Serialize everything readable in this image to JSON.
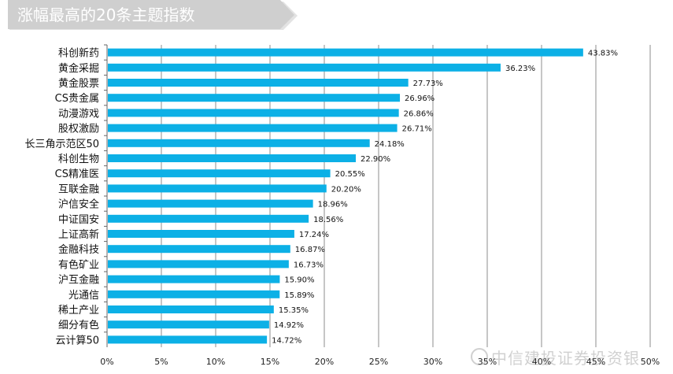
{
  "title": "涨幅最高的20条主题指数",
  "watermark": "中信建投证券投资银",
  "colors": {
    "bar": "#0cb0e6",
    "banner": "#d2d2d2",
    "banner_dark": "#9a9a9a"
  },
  "chart_data": {
    "type": "bar",
    "orientation": "horizontal",
    "categories": [
      "科创新药",
      "黄金采掘",
      "黄金股票",
      "CS贵金属",
      "动漫游戏",
      "股权激励",
      "长三角示范区50",
      "科创生物",
      "CS精准医",
      "互联金融",
      "沪信安全",
      "中证国安",
      "上证高新",
      "金融科技",
      "有色矿业",
      "沪互金融",
      "光通信",
      "稀土产业",
      "细分有色",
      "云计算50"
    ],
    "values": [
      43.83,
      36.23,
      27.73,
      26.96,
      26.86,
      26.71,
      24.18,
      22.9,
      20.55,
      20.2,
      18.96,
      18.56,
      17.24,
      16.87,
      16.73,
      15.9,
      15.89,
      15.35,
      14.92,
      14.72
    ],
    "value_labels": [
      "43.83%",
      "36.23%",
      "27.73%",
      "26.96%",
      "26.86%",
      "26.71%",
      "24.18%",
      "22.90%",
      "20.55%",
      "20.20%",
      "18.96%",
      "18.56%",
      "17.24%",
      "16.87%",
      "16.73%",
      "15.90%",
      "15.89%",
      "15.35%",
      "14.92%",
      "14.72%"
    ],
    "xlim": [
      0,
      50
    ],
    "xticks": [
      0,
      5,
      10,
      15,
      20,
      25,
      30,
      35,
      40,
      45,
      50
    ],
    "xtick_labels": [
      "0%",
      "5%",
      "10%",
      "15%",
      "20%",
      "25%",
      "30%",
      "35%",
      "40%",
      "45%",
      "50%"
    ],
    "grid": "vertical",
    "legend": "none"
  }
}
